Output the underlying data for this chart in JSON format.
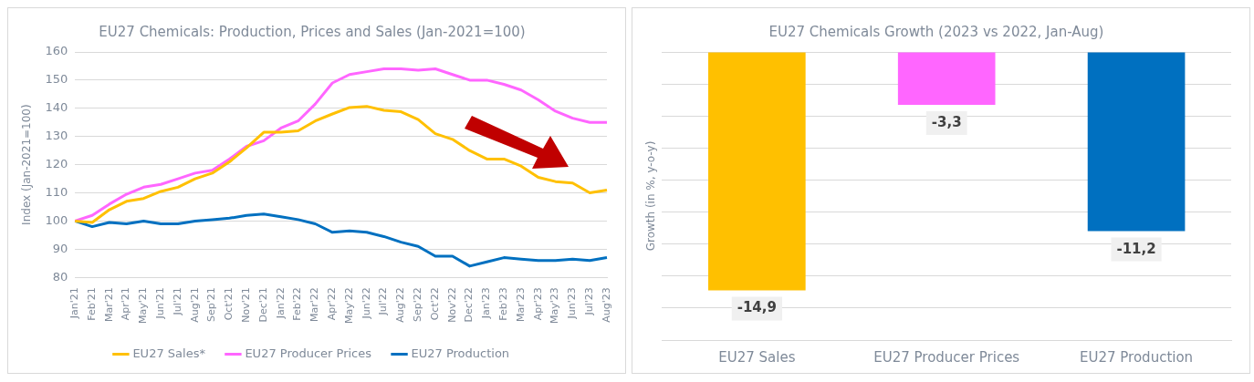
{
  "chart_data": [
    {
      "type": "line",
      "title": "EU27 Chemicals: Production, Prices and Sales (Jan-2021=100)",
      "ylabel": "Index (Jan-2021=100)",
      "categories": [
        "Jan'21",
        "Feb'21",
        "Mar'21",
        "Apr'21",
        "May'21",
        "Jun'21",
        "Jul'21",
        "Aug'21",
        "Sep'21",
        "Oct'21",
        "Nov'21",
        "Dec'21",
        "Jan'22",
        "Feb'22",
        "Mar'22",
        "Apr'22",
        "May'22",
        "Jun'22",
        "Jul'22",
        "Aug'22",
        "Sep'22",
        "Oct'22",
        "Nov'22",
        "Dec'22",
        "Jan'23",
        "Feb'23",
        "Mar'23",
        "Apr'23",
        "May'23",
        "Jun'23",
        "Jul'23",
        "Aug'23"
      ],
      "series": [
        {
          "name": "EU27 Sales*",
          "color": "#ffc000",
          "values": [
            100,
            99.5,
            104,
            107,
            108,
            110.5,
            112,
            115,
            117,
            121,
            126,
            131.5,
            131.5,
            132,
            135.5,
            138,
            140.3,
            140.7,
            139.3,
            138.8,
            136,
            131,
            129,
            125,
            122,
            122,
            119.5,
            115.5,
            114,
            113.5,
            110,
            111
          ]
        },
        {
          "name": "EU27 Producer Prices",
          "color": "#ff66ff",
          "values": [
            100,
            102,
            106,
            109.5,
            112,
            113,
            115,
            117,
            118,
            122,
            126.5,
            128.5,
            133,
            135.5,
            141.5,
            149,
            152,
            153,
            154,
            154,
            153.5,
            154,
            152,
            150,
            150,
            148.5,
            146.5,
            143,
            139,
            136.5,
            135,
            135
          ]
        },
        {
          "name": "EU27 Production",
          "color": "#0070c0",
          "values": [
            100,
            98,
            99.5,
            99,
            100,
            99,
            99,
            100,
            100.5,
            101,
            102,
            102.5,
            101.5,
            100.5,
            99,
            96,
            96.5,
            96,
            94.5,
            92.5,
            91,
            87.5,
            87.5,
            84,
            85.5,
            87,
            86.5,
            86,
            86,
            86.5,
            86,
            87
          ]
        }
      ],
      "ylim": [
        80,
        160
      ],
      "yticks": [
        80,
        90,
        100,
        110,
        120,
        130,
        140,
        150,
        160
      ],
      "grid": "y",
      "legend": "bottom",
      "marker": "none",
      "line_style": "solid"
    },
    {
      "type": "bar",
      "title": "EU27 Chemicals Growth (2023 vs 2022, Jan-Aug)",
      "ylabel": "Growth (in %, y-o-y)",
      "categories": [
        "EU27 Sales",
        "EU27 Producer Prices",
        "EU27 Production"
      ],
      "values": [
        -14.9,
        -3.3,
        -11.2
      ],
      "value_labels": [
        "-14,9",
        "-3,3",
        "-11,2"
      ],
      "colors": [
        "#ffc000",
        "#ff66ff",
        "#0070c0"
      ],
      "ylim": [
        -18,
        0
      ],
      "yticks": [
        {
          "value": -18,
          "label": null
        },
        {
          "value": -16,
          "label": null
        },
        {
          "value": -14,
          "label": null
        },
        {
          "value": -12,
          "label": null
        },
        {
          "value": -10,
          "label": null
        },
        {
          "value": -8,
          "label": null
        },
        {
          "value": -6,
          "label": null
        },
        {
          "value": -4,
          "label": null
        },
        {
          "value": -2,
          "label": null
        },
        {
          "value": 0,
          "label": null
        }
      ],
      "grid": "y",
      "tick_labels": "x"
    }
  ]
}
